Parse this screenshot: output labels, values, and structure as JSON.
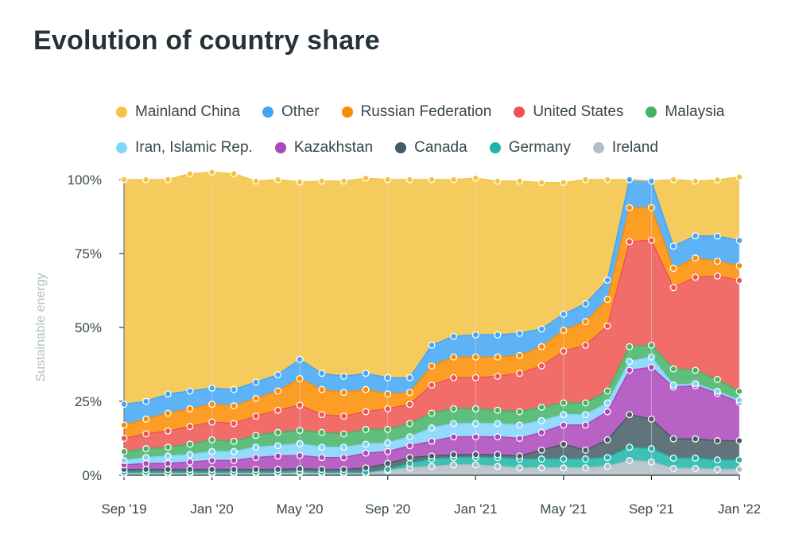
{
  "title": "Evolution of country share",
  "chart_data": {
    "type": "area",
    "stacked": true,
    "percent": true,
    "title": "Evolution of country share",
    "ylabel": "Sustainable energy",
    "xlabel": "",
    "ylim": [
      0,
      100
    ],
    "yticks": [
      "0%",
      "25%",
      "50%",
      "75%",
      "100%"
    ],
    "xtick_labels": [
      "Sep '19",
      "Jan '20",
      "May '20",
      "Sep '20",
      "Jan '21",
      "May '21",
      "Sep '21",
      "Jan '22"
    ],
    "legend_position": "top",
    "grid": false,
    "x": [
      "2019-09",
      "2019-10",
      "2019-11",
      "2019-12",
      "2020-01",
      "2020-02",
      "2020-03",
      "2020-04",
      "2020-05",
      "2020-06",
      "2020-07",
      "2020-08",
      "2020-09",
      "2020-10",
      "2020-11",
      "2020-12",
      "2021-01",
      "2021-02",
      "2021-03",
      "2021-04",
      "2021-05",
      "2021-06",
      "2021-07",
      "2021-08",
      "2021-09",
      "2021-10",
      "2021-11",
      "2021-12",
      "2022-01"
    ],
    "series": [
      {
        "name": "Ireland",
        "color": "#b0bec5",
        "values": [
          0.5,
          0.5,
          0.5,
          0.5,
          0.5,
          0.5,
          0.5,
          0.5,
          0.8,
          0.5,
          0.5,
          0.5,
          1.5,
          2.5,
          3,
          3.5,
          3.5,
          3,
          2.5,
          2.5,
          2.5,
          2.5,
          3,
          5,
          4.5,
          2.3,
          2.3,
          2,
          2
        ]
      },
      {
        "name": "Germany",
        "color": "#1db5a8",
        "values": [
          0.5,
          0.5,
          0.5,
          0.5,
          0.5,
          0.5,
          0.5,
          0.5,
          0.4,
          0.5,
          0.5,
          0.5,
          0.5,
          1.5,
          2.5,
          2.5,
          2.5,
          3,
          3,
          3,
          3,
          3,
          3,
          4.5,
          4.5,
          3.5,
          3.5,
          3.2,
          3.2
        ]
      },
      {
        "name": "Canada",
        "color": "#455a64",
        "values": [
          1,
          1,
          1,
          1,
          1,
          1,
          1,
          1,
          1,
          1,
          1,
          1.5,
          2,
          2,
          1,
          1,
          1,
          1,
          1,
          3,
          5,
          3,
          6,
          11,
          10,
          6.5,
          6.5,
          6.5,
          6.5
        ]
      },
      {
        "name": "Kazakhstan",
        "color": "#ab47bc",
        "values": [
          1.5,
          2,
          2,
          2.5,
          3,
          3,
          4,
          4.5,
          4.5,
          4,
          4,
          5,
          4,
          4,
          5,
          6,
          6,
          6,
          6,
          6,
          6.5,
          8.5,
          9.5,
          15,
          17.5,
          17.5,
          18,
          16,
          13
        ]
      },
      {
        "name": "Iran, Islamic Rep.",
        "color": "#81d4fa",
        "values": [
          1.5,
          2,
          2.5,
          2.5,
          3,
          3,
          3.5,
          3.5,
          4,
          3.5,
          3.5,
          3,
          3,
          3,
          4.5,
          4.5,
          4.5,
          4.5,
          4.5,
          4,
          3.5,
          3.5,
          3,
          3,
          3.5,
          0.7,
          0.7,
          0.7,
          0.7
        ]
      },
      {
        "name": "Malaysia",
        "color": "#43b365",
        "values": [
          3,
          3,
          3,
          3.5,
          4,
          3.5,
          4,
          4.5,
          4.5,
          5,
          4.5,
          5,
          4.5,
          4.5,
          5,
          5,
          5,
          4.5,
          4.5,
          4.5,
          4,
          4,
          4,
          5,
          4,
          5.5,
          4.5,
          4,
          3
        ]
      },
      {
        "name": "United States",
        "color": "#ef5350",
        "values": [
          4.5,
          5,
          5.5,
          6,
          6,
          6,
          6.5,
          7.5,
          8.5,
          6,
          6,
          6,
          7,
          6.5,
          9.5,
          10.5,
          10.5,
          11.5,
          13,
          14,
          17.5,
          19.5,
          22,
          35.5,
          35.5,
          27.5,
          31.5,
          35,
          37.5
        ]
      },
      {
        "name": "Russian Federation",
        "color": "#fb8c00",
        "values": [
          4.5,
          5,
          6,
          6,
          6,
          6,
          6,
          6.5,
          9,
          8.5,
          8,
          7.5,
          5,
          4,
          6.5,
          7,
          7,
          6.5,
          6,
          6.5,
          7,
          8,
          9,
          11.5,
          11,
          6.5,
          6.5,
          5,
          5
        ]
      },
      {
        "name": "Other",
        "color": "#42a5f5",
        "values": [
          7,
          6,
          6.5,
          6,
          5.5,
          5.5,
          5.5,
          5.5,
          6.5,
          5.5,
          5.5,
          5.5,
          5.5,
          5,
          7,
          7,
          7.5,
          7.5,
          7.5,
          6,
          5.5,
          6,
          6.5,
          9.5,
          9,
          7.5,
          7.5,
          8.5,
          8.5
        ]
      },
      {
        "name": "Mainland China",
        "color": "#f5c242",
        "values": [
          76,
          75,
          72.5,
          73.5,
          73,
          73,
          68,
          66,
          60,
          65,
          66,
          66,
          67,
          67,
          56,
          53,
          53,
          52,
          51.5,
          49.5,
          44.5,
          42,
          34,
          0,
          0,
          22.5,
          18.5,
          19,
          21.5
        ]
      }
    ]
  }
}
